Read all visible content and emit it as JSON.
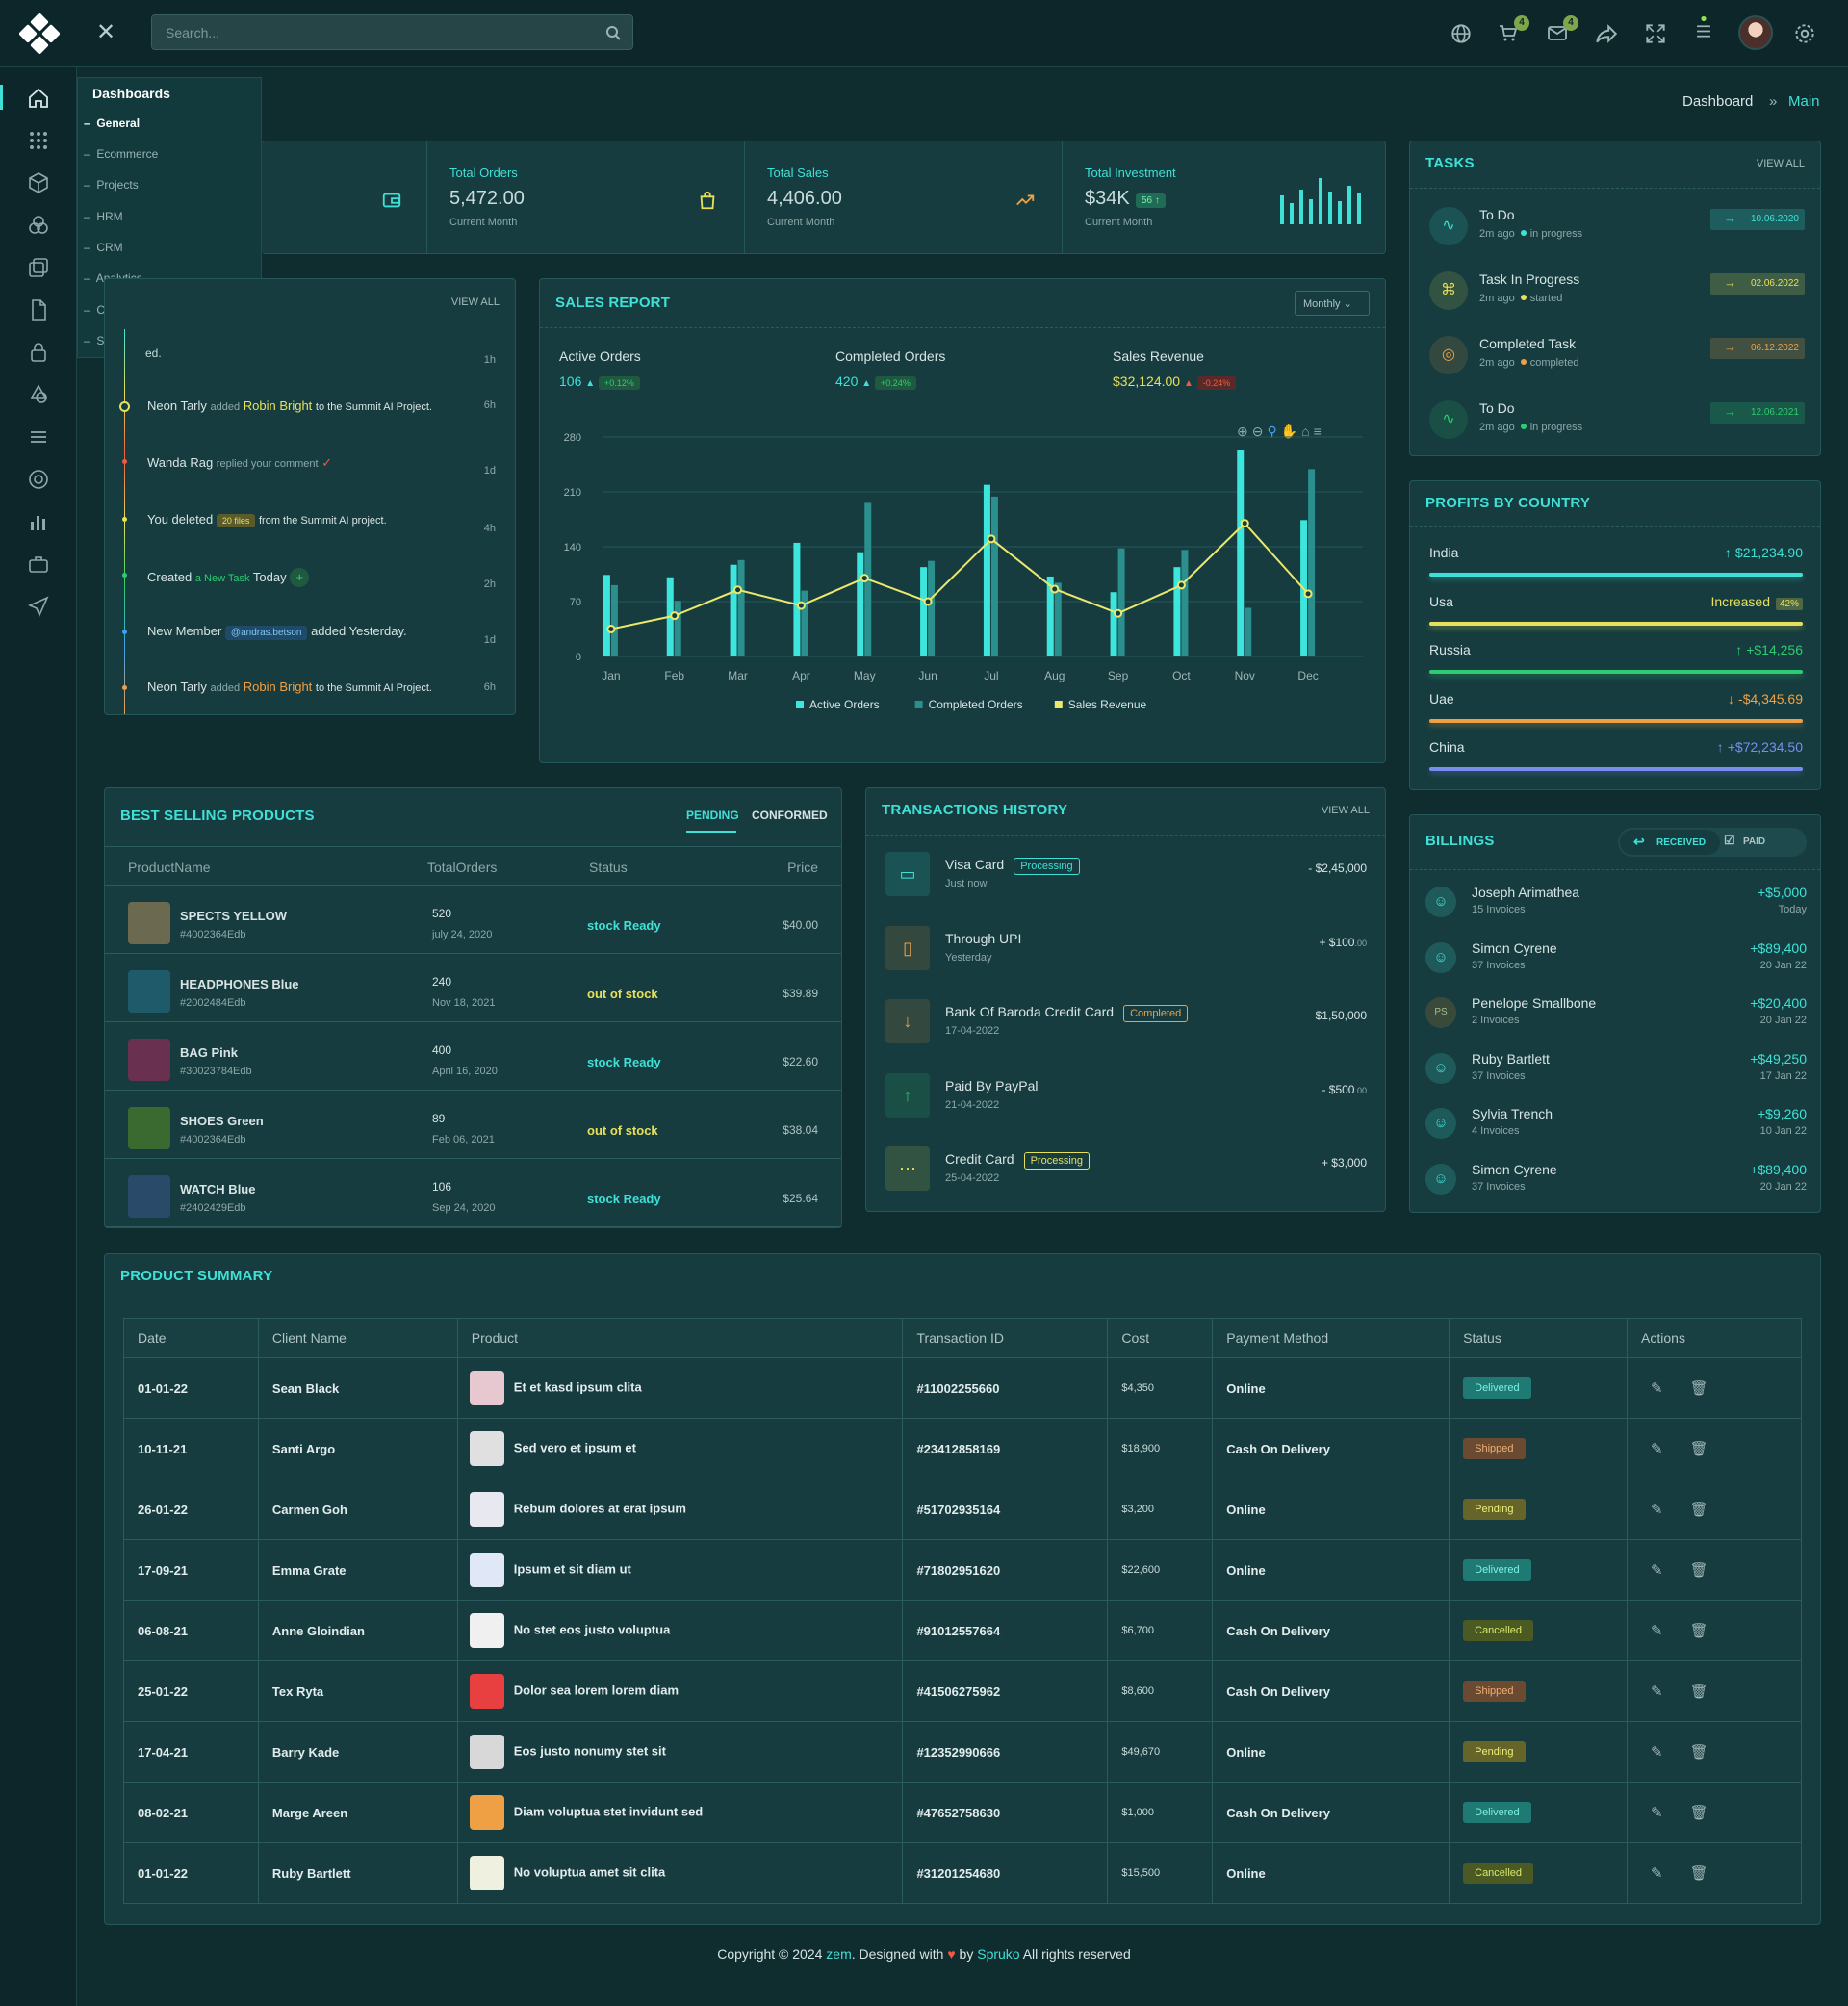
{
  "topbar": {
    "search_placeholder": "Search...",
    "cart_badge": "4",
    "mail_badge": "4"
  },
  "menu": {
    "title": "Dashboards",
    "items": [
      "General",
      "Ecommerce",
      "Projects",
      "HRM",
      "CRM",
      "Analytics",
      "Crypto",
      "Sales"
    ]
  },
  "breadcrumb": {
    "parent": "Dashboard",
    "sep": "»",
    "current": "Main"
  },
  "stats": [
    {
      "label": "Total Orders",
      "value": "5,472.00",
      "sub": "Current Month"
    },
    {
      "label": "Total Sales",
      "value": "4,406.00",
      "sub": "Current Month"
    },
    {
      "label": "Total Investment",
      "value": "$34K",
      "sub": "Current Month",
      "badge": "56 ↑"
    }
  ],
  "activity": {
    "view_all": "VIEW ALL",
    "items": [
      {
        "a": "",
        "b": "ed.",
        "c": "",
        "time": "1h"
      },
      {
        "a": "Neon Tarly",
        "b": "added",
        "c": "Robin Bright",
        "d": "to the Summit AI Project.",
        "time": "6h"
      },
      {
        "a": "Wanda Rag",
        "b": "replied your comment",
        "time": "1d"
      },
      {
        "a": "You deleted",
        "tag": "20 files",
        "d": "from the Summit AI project.",
        "time": "4h"
      },
      {
        "a": "Created",
        "b": "a New Task",
        "d": "Today",
        "time": "2h"
      },
      {
        "a": "New Member",
        "tag": "@andras.betson",
        "d": "added Yesterday.",
        "time": "1d"
      },
      {
        "a": "Neon Tarly",
        "b": "added",
        "c": "Robin Bright",
        "d": "to the Summit AI Project.",
        "time": "6h"
      }
    ]
  },
  "sales_report": {
    "title": "SALES REPORT",
    "dropdown": "Monthly",
    "metrics": [
      {
        "label": "Active Orders",
        "value": "106",
        "change": "+0.12%"
      },
      {
        "label": "Completed Orders",
        "value": "420",
        "change": "+0.24%"
      },
      {
        "label": "Sales Revenue",
        "value": "$32,124.00",
        "change": "-0.24%"
      }
    ]
  },
  "chart_data": {
    "type": "bar",
    "categories": [
      "Jan",
      "Feb",
      "Mar",
      "Apr",
      "May",
      "Jun",
      "Jul",
      "Aug",
      "Sep",
      "Oct",
      "Nov",
      "Dec"
    ],
    "ylim": [
      0,
      280
    ],
    "yticks": [
      0,
      70,
      140,
      210,
      280
    ],
    "series": [
      {
        "name": "Active Orders",
        "type": "bar",
        "color": "#3de6dc",
        "values": [
          104,
          101,
          117,
          145,
          133,
          114,
          219,
          102,
          82,
          114,
          263,
          174
        ]
      },
      {
        "name": "Completed Orders",
        "type": "bar",
        "color": "#2a8f8d",
        "values": [
          91,
          71,
          123,
          84,
          196,
          122,
          204,
          94,
          138,
          136,
          62,
          239
        ]
      },
      {
        "name": "Sales Revenue",
        "type": "line",
        "color": "#ece86c",
        "values": [
          35,
          52,
          85,
          65,
          100,
          70,
          150,
          86,
          55,
          91,
          170,
          80
        ]
      }
    ]
  },
  "tasks": {
    "title": "TASKS",
    "view_all": "VIEW ALL",
    "items": [
      {
        "name": "To Do",
        "time": "2m ago",
        "status": "in progress",
        "date": "10.06.2020",
        "color": "#3fe0d6"
      },
      {
        "name": "Task In Progress",
        "time": "2m ago",
        "status": "started",
        "date": "02.06.2022",
        "color": "#e7e05a"
      },
      {
        "name": "Completed Task",
        "time": "2m ago",
        "status": "completed",
        "date": "06.12.2022",
        "color": "#f0a044"
      },
      {
        "name": "To Do",
        "time": "2m ago",
        "status": "in progress",
        "date": "12.06.2021",
        "color": "#2ecc71"
      }
    ]
  },
  "profits": {
    "title": "PROFITS BY COUNTRY",
    "items": [
      {
        "country": "India",
        "value": "$21,234.90",
        "arrow": "↑",
        "color": "#3fe0d6",
        "extra": ""
      },
      {
        "country": "Usa",
        "value": "Increased",
        "arrow": "",
        "color": "#e7e05a",
        "extra": "42%"
      },
      {
        "country": "Russia",
        "value": "+$14,256",
        "arrow": "↑",
        "color": "#2ecc71",
        "extra": ""
      },
      {
        "country": "Uae",
        "value": "-$4,345.69",
        "arrow": "↓",
        "color": "#f0a044",
        "extra": ""
      },
      {
        "country": "China",
        "value": "+$72,234.50",
        "arrow": "↑",
        "color": "#7b8cf0",
        "extra": ""
      }
    ]
  },
  "best_selling": {
    "title": "BEST SELLING PRODUCTS",
    "tab1": "PENDING",
    "tab2": "CONFORMED",
    "headers": [
      "ProductName",
      "TotalOrders",
      "Status",
      "Price"
    ],
    "rows": [
      {
        "name": "SPECTS YELLOW",
        "id": "#4002364Edb",
        "orders": "520",
        "date": "july 24, 2020",
        "status": "stock Ready",
        "price": "$40.00"
      },
      {
        "name": "HEADPHONES Blue",
        "id": "#2002484Edb",
        "orders": "240",
        "date": "Nov 18, 2021",
        "status": "out of stock",
        "price": "$39.89"
      },
      {
        "name": "BAG Pink",
        "id": "#30023784Edb",
        "orders": "400",
        "date": "April 16, 2020",
        "status": "stock Ready",
        "price": "$22.60"
      },
      {
        "name": "SHOES Green",
        "id": "#4002364Edb",
        "orders": "89",
        "date": "Feb 06, 2021",
        "status": "out of stock",
        "price": "$38.04"
      },
      {
        "name": "WATCH Blue",
        "id": "#2402429Edb",
        "orders": "106",
        "date": "Sep 24, 2020",
        "status": "stock Ready",
        "price": "$25.64"
      }
    ]
  },
  "transactions": {
    "title": "TRANSACTIONS HISTORY",
    "view_all": "VIEW ALL",
    "items": [
      {
        "name": "Visa Card",
        "tag": "Processing",
        "tag_color": "#3fe0d6",
        "sub": "Just now",
        "amount": "- $2,45,000",
        "icon": "card-icon"
      },
      {
        "name": "Through UPI",
        "tag": "",
        "sub": "Yesterday",
        "amount": "+ $100",
        "cents": ".00",
        "icon": "phone-icon"
      },
      {
        "name": "Bank Of Baroda Credit Card",
        "tag": "Completed",
        "tag_color": "#f0a044",
        "sub": "17-04-2022",
        "amount": "$1,50,000",
        "icon": "down-arrow-icon"
      },
      {
        "name": "Paid By PayPal",
        "tag": "",
        "sub": "21-04-2022",
        "amount": "- $500",
        "cents": ".00",
        "icon": "up-arrow-icon"
      },
      {
        "name": "Credit Card",
        "tag": "Processing",
        "tag_color": "#e7e05a",
        "sub": "25-04-2022",
        "amount": "+ $3,000",
        "icon": "dots-icon"
      }
    ]
  },
  "billings": {
    "title": "BILLINGS",
    "tab1": "RECEIVED",
    "tab2": "PAID",
    "items": [
      {
        "name": "Joseph Arimathea",
        "sub": "15 Invoices",
        "amount": "+$5,000",
        "date": "Today",
        "initials": ""
      },
      {
        "name": "Simon Cyrene",
        "sub": "37 Invoices",
        "amount": "+$89,400",
        "date": "20 Jan 22",
        "initials": ""
      },
      {
        "name": "Penelope Smallbone",
        "sub": "2 Invoices",
        "amount": "+$20,400",
        "date": "20 Jan 22",
        "initials": "PS"
      },
      {
        "name": "Ruby Bartlett",
        "sub": "37 Invoices",
        "amount": "+$49,250",
        "date": "17 Jan 22",
        "initials": ""
      },
      {
        "name": "Sylvia Trench",
        "sub": "4 Invoices",
        "amount": "+$9,260",
        "date": "10 Jan 22",
        "initials": ""
      },
      {
        "name": "Simon Cyrene",
        "sub": "37 Invoices",
        "amount": "+$89,400",
        "date": "20 Jan 22",
        "initials": ""
      }
    ]
  },
  "summary": {
    "title": "PRODUCT SUMMARY",
    "headers": [
      "Date",
      "Client Name",
      "Product",
      "Transaction ID",
      "Cost",
      "Payment Method",
      "Status",
      "Actions"
    ],
    "rows": [
      {
        "date": "01-01-22",
        "client": "Sean Black",
        "product": "Et et kasd ipsum clita",
        "tid": "#11002255660",
        "cost": "$4,350",
        "method": "Online",
        "status": "Delivered"
      },
      {
        "date": "10-11-21",
        "client": "Santi Argo",
        "product": "Sed vero et ipsum et",
        "tid": "#23412858169",
        "cost": "$18,900",
        "method": "Cash On Delivery",
        "status": "Shipped"
      },
      {
        "date": "26-01-22",
        "client": "Carmen Goh",
        "product": "Rebum dolores at erat ipsum",
        "tid": "#51702935164",
        "cost": "$3,200",
        "method": "Online",
        "status": "Pending"
      },
      {
        "date": "17-09-21",
        "client": "Emma Grate",
        "product": "Ipsum et sit diam ut",
        "tid": "#71802951620",
        "cost": "$22,600",
        "method": "Online",
        "status": "Delivered"
      },
      {
        "date": "06-08-21",
        "client": "Anne Gloindian",
        "product": "No stet eos justo voluptua",
        "tid": "#91012557664",
        "cost": "$6,700",
        "method": "Cash On Delivery",
        "status": "Cancelled"
      },
      {
        "date": "25-01-22",
        "client": "Tex Ryta",
        "product": "Dolor sea lorem lorem diam",
        "tid": "#41506275962",
        "cost": "$8,600",
        "method": "Cash On Delivery",
        "status": "Shipped"
      },
      {
        "date": "17-04-21",
        "client": "Barry Kade",
        "product": "Eos justo nonumy stet sit",
        "tid": "#12352990666",
        "cost": "$49,670",
        "method": "Online",
        "status": "Pending"
      },
      {
        "date": "08-02-21",
        "client": "Marge Areen",
        "product": "Diam voluptua stet invidunt sed",
        "tid": "#47652758630",
        "cost": "$1,000",
        "method": "Cash On Delivery",
        "status": "Delivered"
      },
      {
        "date": "01-01-22",
        "client": "Ruby Bartlett",
        "product": "No voluptua amet sit clita",
        "tid": "#31201254680",
        "cost": "$15,500",
        "method": "Online",
        "status": "Cancelled"
      }
    ]
  },
  "status_colors": {
    "Delivered": {
      "bg": "#1f7a74",
      "fg": "#7ff0e6"
    },
    "Shipped": {
      "bg": "#6a4a30",
      "fg": "#f0b074"
    },
    "Pending": {
      "bg": "#65652a",
      "fg": "#f0ee7a"
    },
    "Cancelled": {
      "bg": "#4a5a22",
      "fg": "#d8e870"
    }
  },
  "footer": {
    "prefix": "Copyright © 2024 ",
    "brand": "zem",
    "mid": ". Designed with ",
    "heart": "♥",
    "by": " by ",
    "author": "Spruko",
    "suffix": " All rights reserved"
  }
}
